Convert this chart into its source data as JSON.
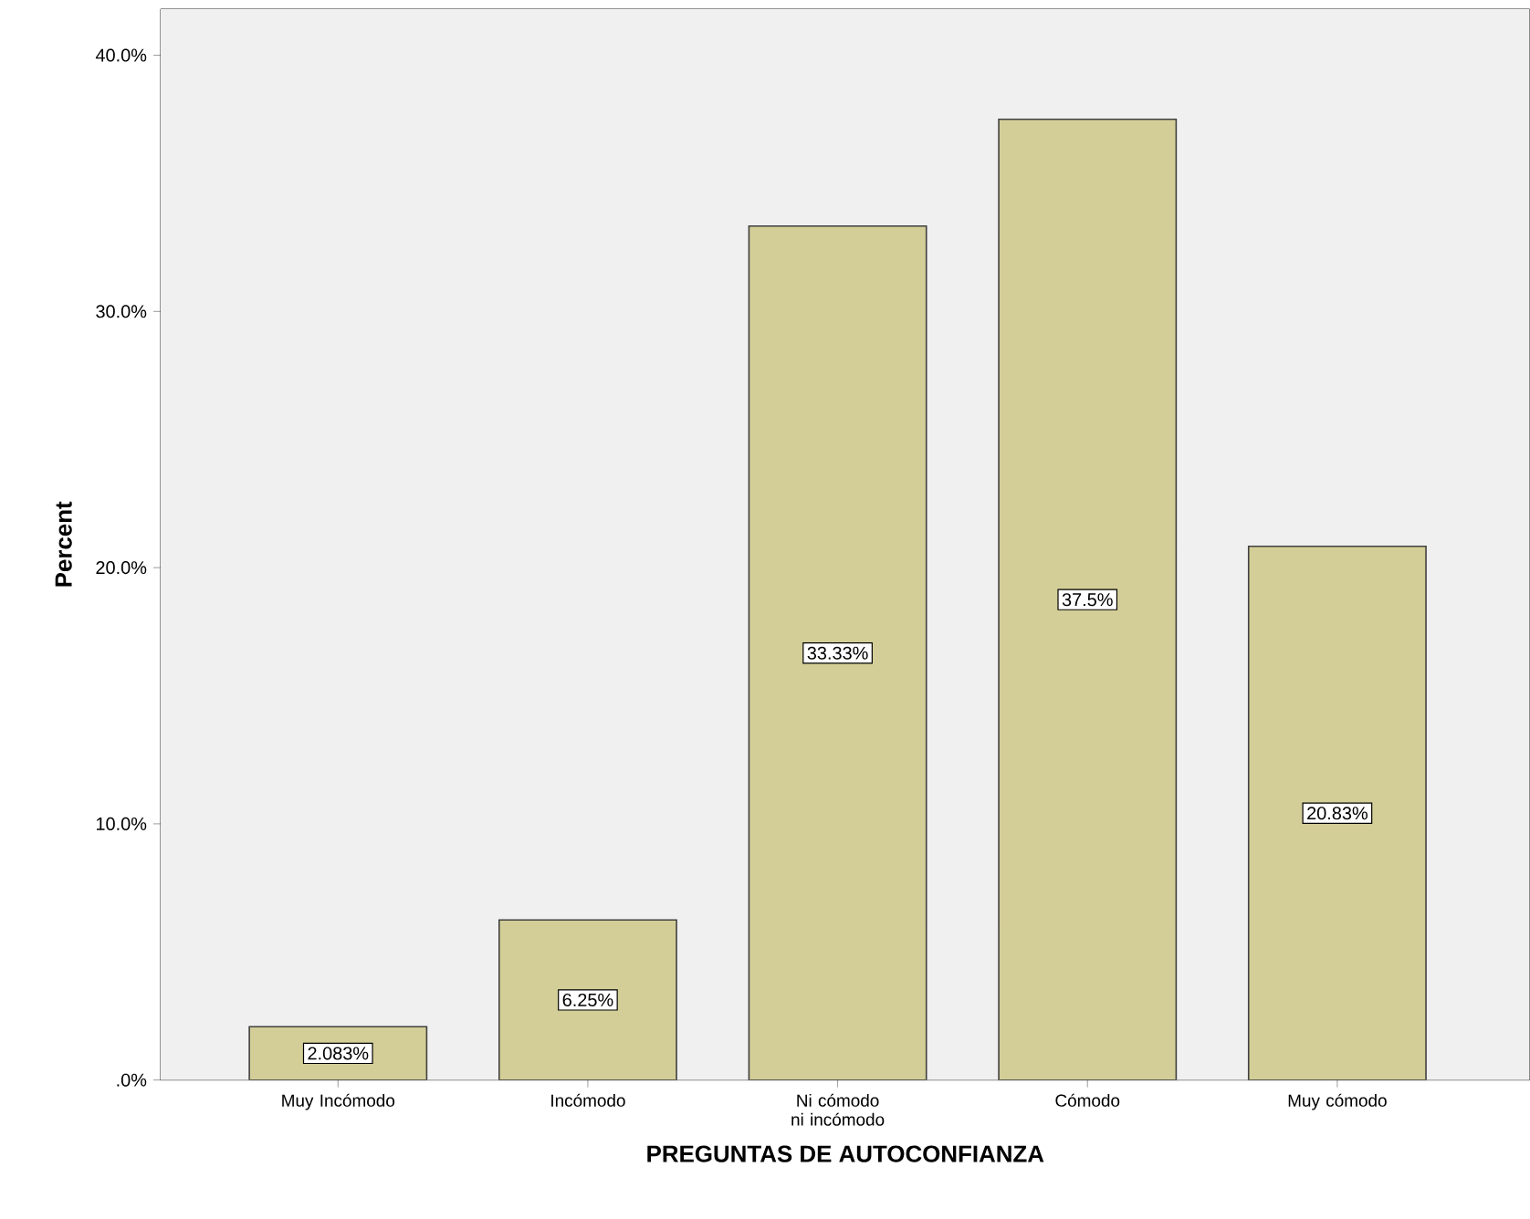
{
  "chart_data": {
    "type": "bar",
    "xlabel": "PREGUNTAS DE AUTOCONFIANZA",
    "ylabel": "Percent",
    "categories": [
      "Muy Incómodo",
      "Incómodo",
      "Ni cómodo ni incómodo",
      "Cómodo",
      "Muy cómodo"
    ],
    "values": [
      2.083,
      6.25,
      33.33,
      37.5,
      20.83
    ],
    "value_labels": [
      "2.083%",
      "6.25%",
      "33.33%",
      "37.5%",
      "20.83%"
    ],
    "color": "#d3ce97",
    "ylim": [
      0,
      41.8
    ],
    "yticks": [
      {
        "value": 0,
        "label": ".0%"
      },
      {
        "value": 10,
        "label": "10.0%"
      },
      {
        "value": 20,
        "label": "20.0%"
      },
      {
        "value": 30,
        "label": "30.0%"
      },
      {
        "value": 40,
        "label": "40.0%"
      }
    ],
    "grid": false
  }
}
